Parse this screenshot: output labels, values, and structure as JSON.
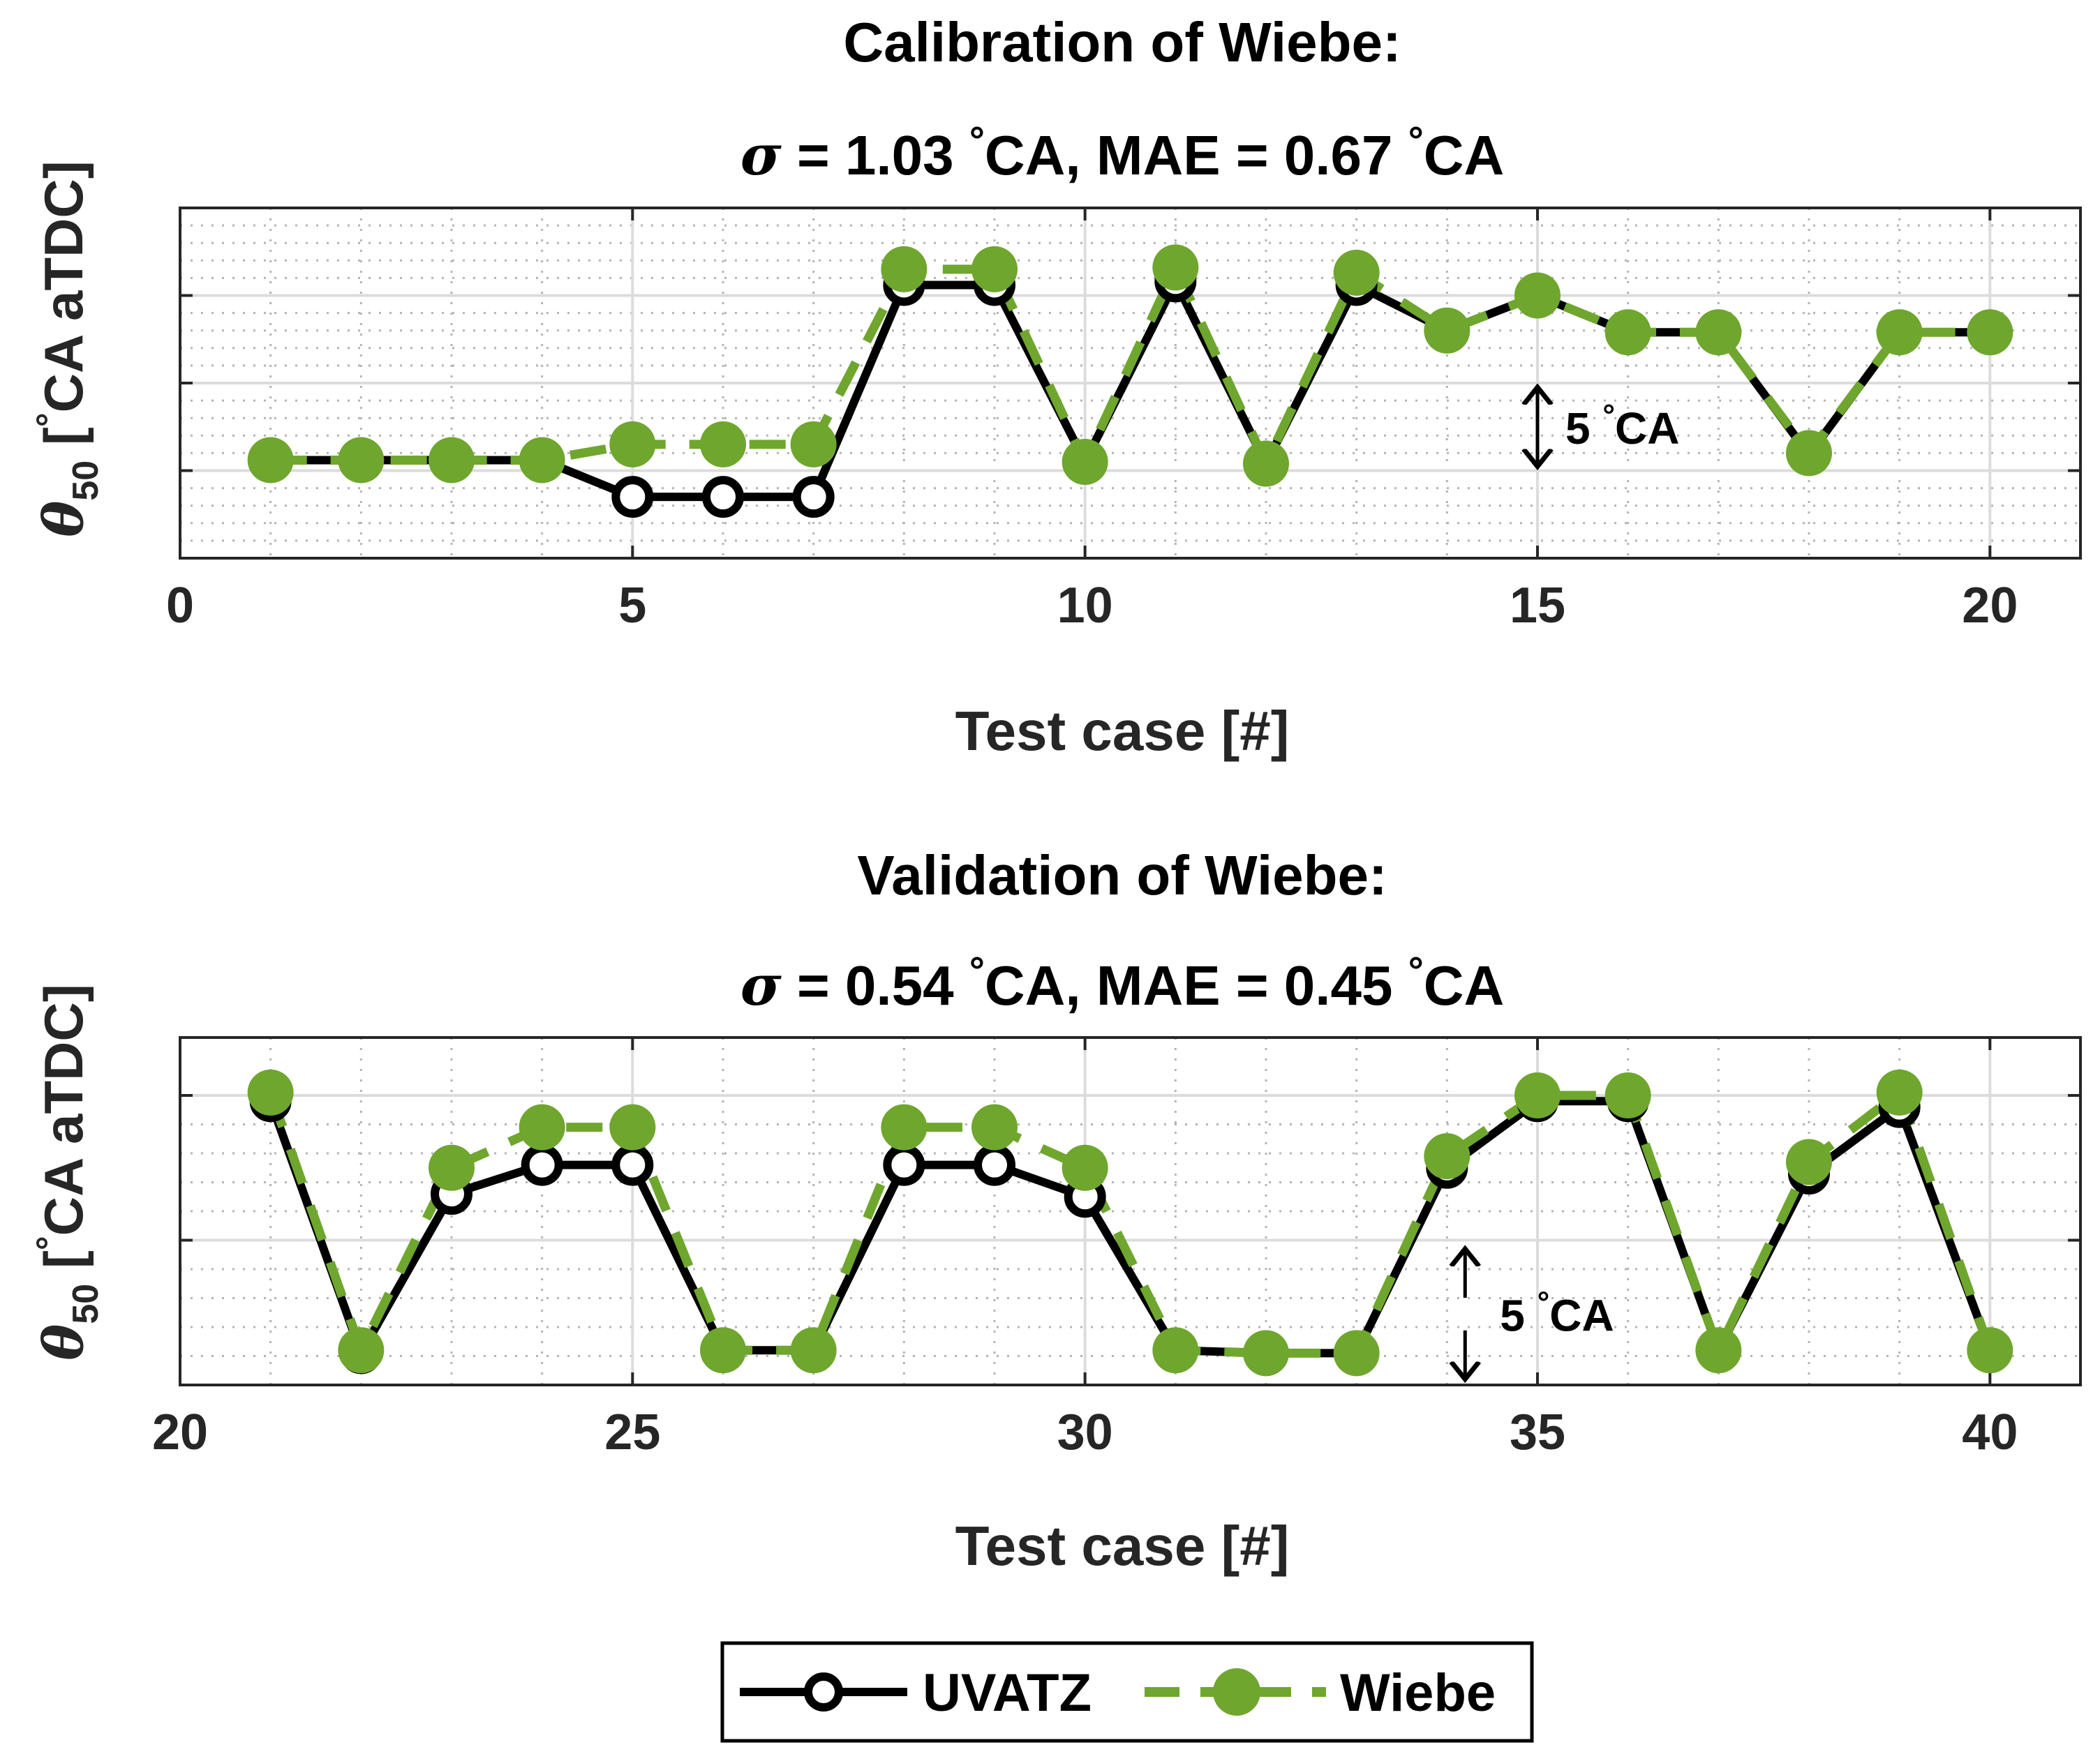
{
  "colors": {
    "uvatz": "#000000",
    "wiebe": "#6fa62e",
    "grid_major": "#dcdcdc",
    "grid_minor": "#b4b4b4",
    "axis": "#262626",
    "text": "#262626"
  },
  "legend": {
    "uvatz_label": "UVATZ",
    "wiebe_label": "Wiebe"
  },
  "chart_data": [
    {
      "type": "line",
      "title_line1": "Calibration of Wiebe:",
      "stats": {
        "sigma_symbol": "σ",
        "sigma_text": " = 1.03 ",
        "mae_text": "CA, MAE = 0.67 ",
        "unit_text": "CA",
        "degree": "°"
      },
      "xlabel": "Test case [#]",
      "ylabel": {
        "theta": "θ",
        "subscript": "50",
        "text": " [",
        "degree": "°",
        "unit": "CA aTDC]"
      },
      "xlim": [
        0,
        21
      ],
      "ylim": [
        0,
        20
      ],
      "xticks": [
        0,
        5,
        10,
        15,
        20
      ],
      "xtick_labels": [
        "0",
        "5",
        "10",
        "15",
        "20"
      ],
      "yticks": [
        0,
        5,
        10,
        15,
        20
      ],
      "ygrid_minor": [
        1,
        2,
        3,
        4,
        6,
        7,
        8,
        9,
        11,
        12,
        13,
        14,
        16,
        17,
        18,
        19
      ],
      "scale_annotation": {
        "text": "5 ",
        "degree": "°",
        "unit": "CA",
        "x": 15,
        "y_from": 5,
        "y_to": 10,
        "arrow": "double"
      },
      "series": [
        {
          "name": "UVATZ",
          "x": [
            1,
            2,
            3,
            4,
            5,
            6,
            7,
            8,
            9,
            10,
            11,
            12,
            13,
            14,
            15,
            16,
            17,
            18,
            19,
            20
          ],
          "values": [
            5.6,
            5.6,
            5.6,
            5.6,
            3.5,
            3.5,
            3.5,
            15.6,
            15.6,
            5.5,
            15.8,
            5.4,
            15.6,
            13.0,
            15.0,
            12.9,
            12.9,
            5.9,
            12.9,
            12.9
          ]
        },
        {
          "name": "Wiebe",
          "x": [
            1,
            2,
            3,
            4,
            5,
            6,
            7,
            8,
            9,
            10,
            11,
            12,
            13,
            14,
            15,
            16,
            17,
            18,
            19,
            20
          ],
          "values": [
            5.6,
            5.6,
            5.6,
            5.6,
            6.5,
            6.5,
            6.5,
            16.5,
            16.5,
            5.5,
            16.6,
            5.4,
            16.3,
            13.0,
            15.0,
            12.9,
            12.9,
            6.0,
            12.9,
            12.9
          ]
        }
      ]
    },
    {
      "type": "line",
      "title_line1": "Validation of Wiebe:",
      "stats": {
        "sigma_symbol": "σ",
        "sigma_text": " = 0.54 ",
        "mae_text": "CA, MAE = 0.45 ",
        "unit_text": "CA",
        "degree": "°"
      },
      "xlabel": "Test case [#]",
      "ylabel": {
        "theta": "θ",
        "subscript": "50",
        "text": " [",
        "degree": "°",
        "unit": "CA aTDC]"
      },
      "xlim": [
        20,
        41
      ],
      "ylim": [
        0,
        12
      ],
      "xticks": [
        20,
        25,
        30,
        35,
        40
      ],
      "xtick_labels": [
        "20",
        "25",
        "30",
        "35",
        "40"
      ],
      "yticks": [
        0,
        5,
        10
      ],
      "ygrid_minor": [
        1,
        2,
        3,
        4,
        6,
        7,
        8,
        9
      ],
      "scale_annotation": {
        "text": "5 ",
        "degree": "°",
        "unit": "CA",
        "x": 34.2,
        "y_from": 0.2,
        "y_to": 4.7,
        "arrow": "split"
      },
      "series": [
        {
          "name": "UVATZ",
          "x": [
            21,
            22,
            23,
            24,
            25,
            26,
            27,
            28,
            29,
            30,
            31,
            32,
            33,
            34,
            35,
            36,
            37,
            38,
            39,
            40
          ],
          "values": [
            9.8,
            1.1,
            6.6,
            7.6,
            7.6,
            1.2,
            1.2,
            7.6,
            7.6,
            6.5,
            1.2,
            1.1,
            1.1,
            7.5,
            9.8,
            9.8,
            1.2,
            7.3,
            9.6,
            1.2
          ]
        },
        {
          "name": "Wiebe",
          "x": [
            21,
            22,
            23,
            24,
            25,
            26,
            27,
            28,
            29,
            30,
            31,
            32,
            33,
            34,
            35,
            36,
            37,
            38,
            39,
            40
          ],
          "values": [
            10.1,
            1.2,
            7.5,
            8.9,
            8.9,
            1.2,
            1.2,
            8.9,
            8.9,
            7.5,
            1.2,
            1.1,
            1.1,
            7.9,
            10.0,
            10.0,
            1.2,
            7.7,
            10.1,
            1.2
          ]
        }
      ]
    }
  ]
}
